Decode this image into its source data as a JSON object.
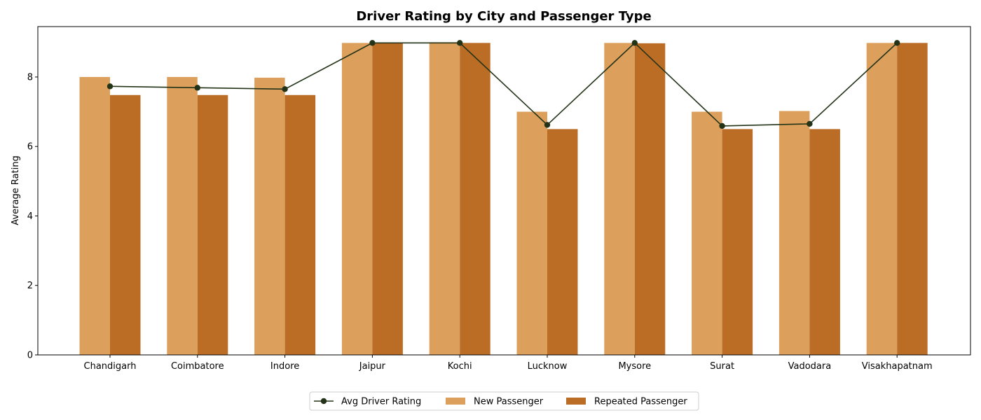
{
  "chart_data": {
    "type": "bar",
    "title": "Driver Rating by City and Passenger Type",
    "xlabel": "",
    "ylabel": "Average Rating",
    "ylim": [
      0,
      9.45
    ],
    "yticks": [
      "0",
      "2",
      "4",
      "6",
      "8"
    ],
    "grid": false,
    "legend_position": "bottom-center",
    "categories": [
      "Chandigarh",
      "Coimbatore",
      "Indore",
      "Jaipur",
      "Kochi",
      "Lucknow",
      "Mysore",
      "Surat",
      "Vadodara",
      "Visakhapatnam"
    ],
    "series": [
      {
        "name": "New Passenger",
        "type": "bar",
        "color": "#dda05c",
        "values": [
          8.0,
          8.0,
          7.98,
          8.98,
          9.0,
          7.0,
          8.98,
          7.0,
          7.02,
          8.98
        ]
      },
      {
        "name": "Repeated Passenger",
        "type": "bar",
        "color": "#bb6c25",
        "values": [
          7.48,
          7.48,
          7.48,
          8.98,
          8.98,
          6.5,
          8.97,
          6.5,
          6.5,
          8.98
        ]
      },
      {
        "name": "Avg Driver Rating",
        "type": "line",
        "color": "#233318",
        "values": [
          7.73,
          7.69,
          7.65,
          8.98,
          8.98,
          6.62,
          8.98,
          6.59,
          6.65,
          8.98
        ]
      }
    ]
  }
}
